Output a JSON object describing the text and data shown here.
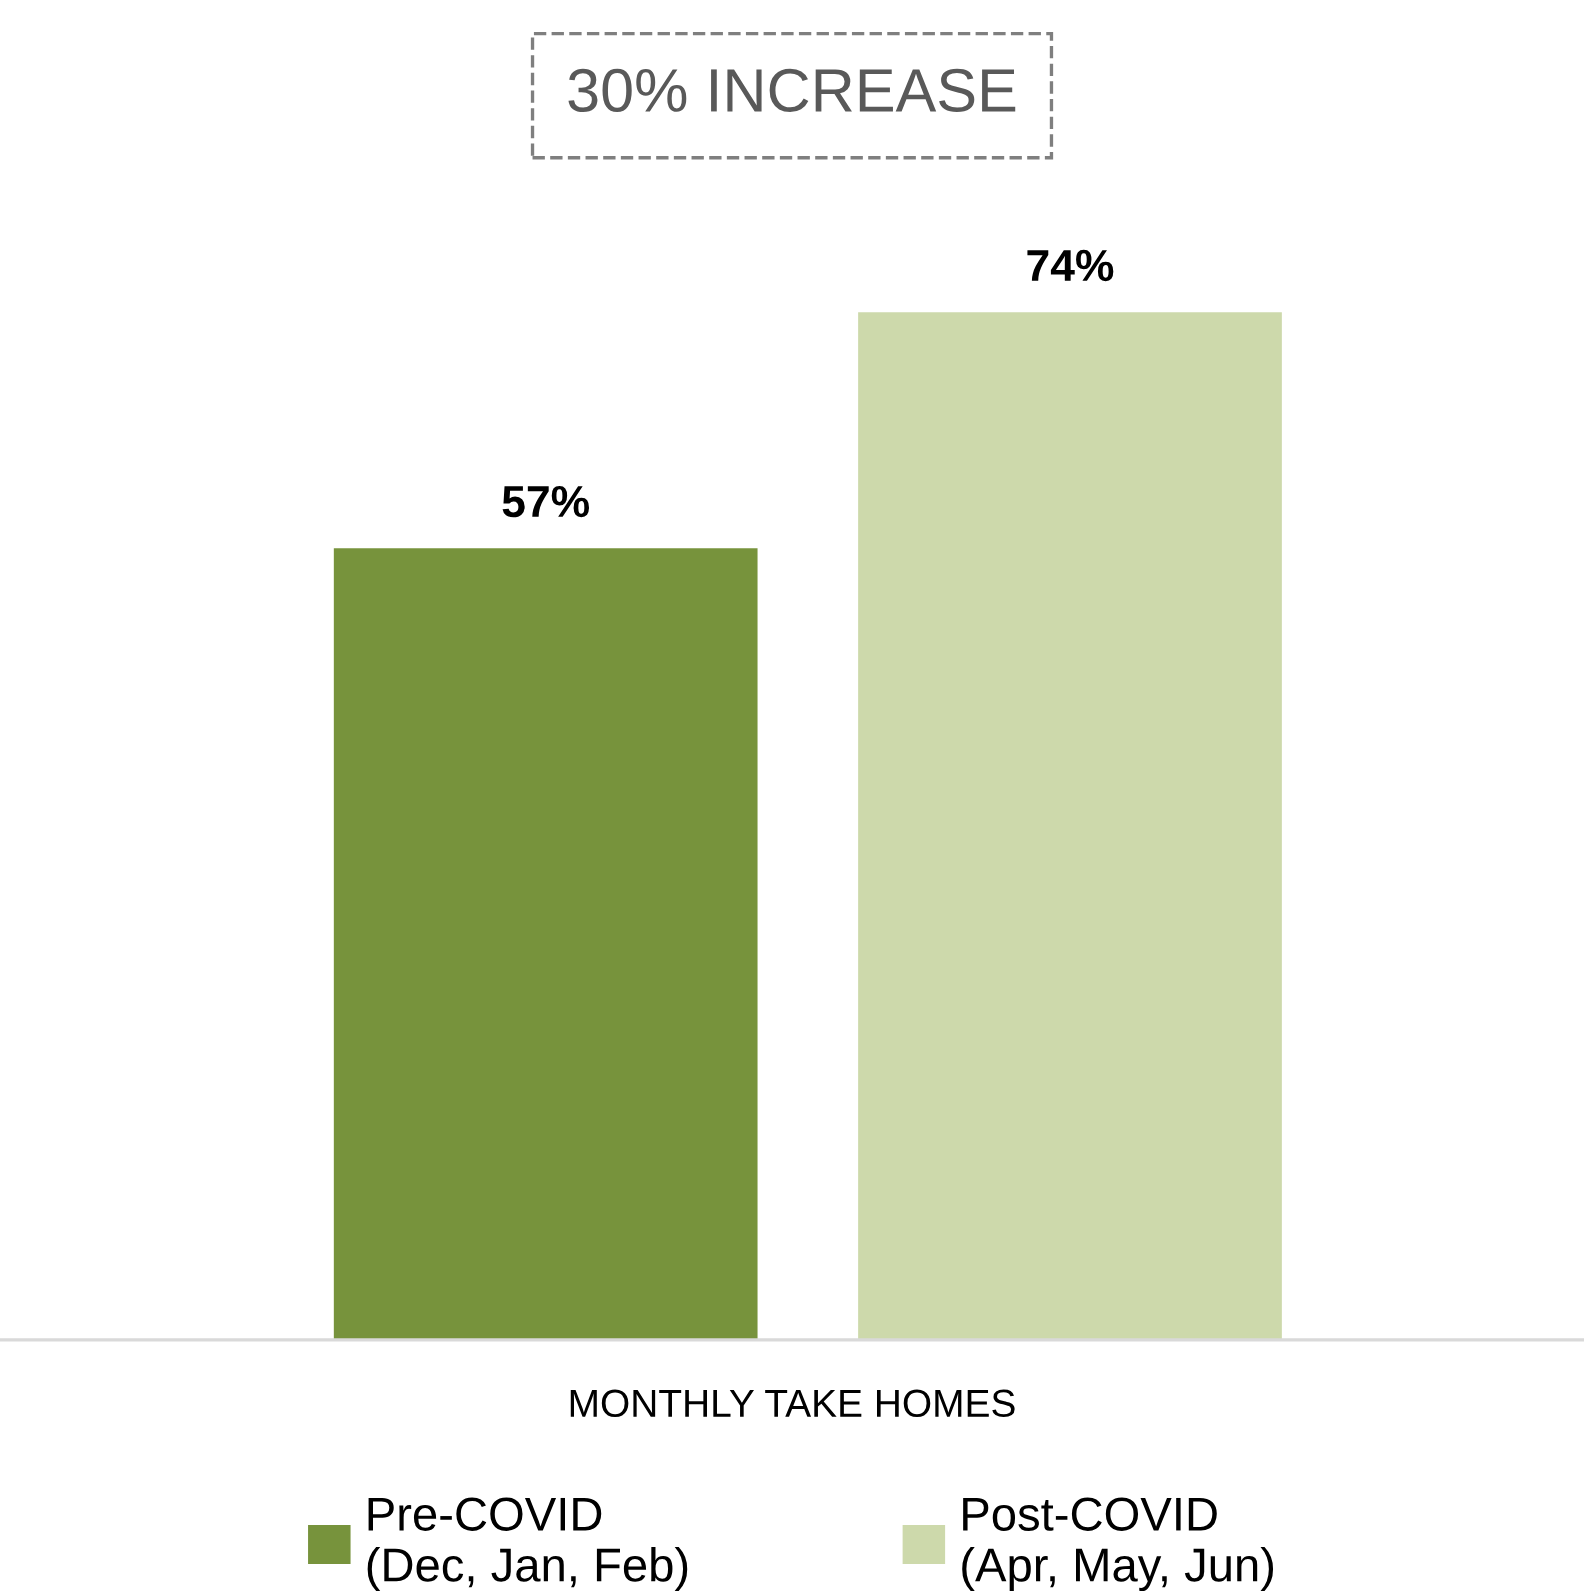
{
  "chart_data": {
    "type": "bar",
    "categories": [
      null
    ],
    "xlabel": "MONTHLY TAKE HOMES",
    "series": [
      {
        "name": "Pre-COVID\n(Dec, Jan, Feb)",
        "color": "#77933c",
        "values": [
          57
        ],
        "value_labels": [
          "57%"
        ]
      },
      {
        "name": "Post-COVID\n(Apr, May, Jun)",
        "color": "#cdd9ab",
        "values": [
          74
        ],
        "value_labels": [
          "74%"
        ]
      }
    ],
    "annotations": [
      "30% INCREASE"
    ],
    "legend": "bottom",
    "grid": false,
    "tick_labels": "x"
  }
}
